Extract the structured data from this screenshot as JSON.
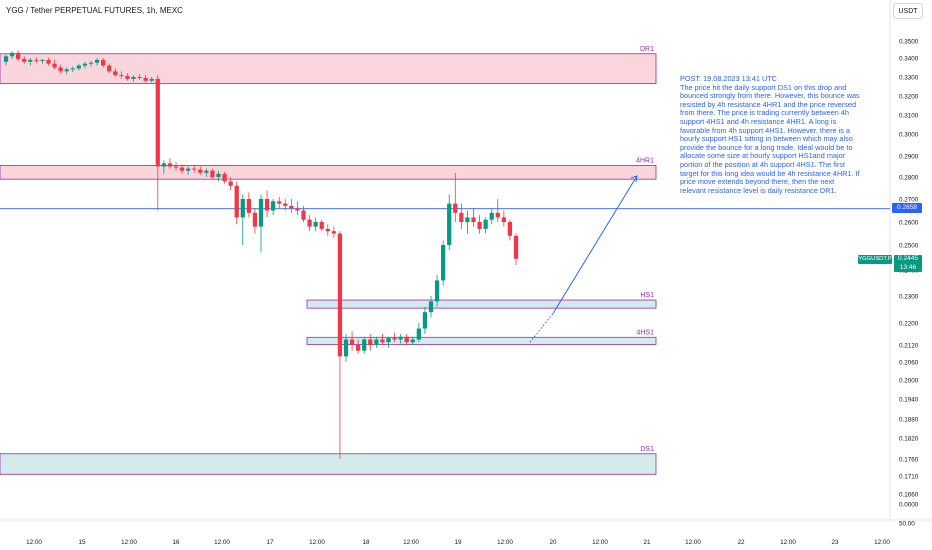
{
  "header": {
    "title": "YGG / Tether PERPETUAL FUTURES, 1h, MEXC",
    "currency": "USDT"
  },
  "annotation": {
    "lines": [
      "POST: 19.08.2023 13:41 UTC",
      "The price hit the daily support DS1 on this drop and bounced strongly from there. However, this bounce was resisted by 4h resistance 4HR1 and the price reversed from there. The price is trading currently between 4h support 4HS1 and 4h resistance 4HR1. A long is favorable from 4h support 4HS1. However, there is a hourly support HS1 sitting in between which may also provide the bounce for a long trade. Ideal would be to allocate some size at hourly support HS1and major portion of the position at 4h support 4HS1. The first target for this long idea would be 4h resistance 4HR1. If price move extends beyond there, then the next relevant resistance level is daily resistance DR1."
    ]
  },
  "price_labels": {
    "horizontal_line": "0.2658",
    "symbol": "YGGUSDT.P",
    "last_price": "0.2445",
    "countdown": "13:46"
  },
  "colors": {
    "up": "#089981",
    "down": "#f23645",
    "resistance_fill": "#fbd5dc",
    "support_fill": "#d3ebea",
    "zone_border": "#9c27b0",
    "line": "#2962ff",
    "axis_text": "#131722"
  },
  "chart_data": {
    "type": "candlestick",
    "title": "YGG / Tether PERPETUAL FUTURES, 1h, MEXC",
    "y_ticks": [
      "0.3500",
      "0.3400",
      "0.3300",
      "0.3200",
      "0.3100",
      "0.3000",
      "0.2900",
      "0.2800",
      "0.2700",
      "0.2600",
      "0.2500",
      "0.2400",
      "0.2300",
      "0.2200",
      "0.2120",
      "0.2060",
      "0.2000",
      "0.1940",
      "0.1880",
      "0.1820",
      "0.1760",
      "0.1710",
      "0.1660",
      "0.0000",
      "50.00"
    ],
    "x_ticks": [
      "12:00",
      "15",
      "12:00",
      "16",
      "12:00",
      "17",
      "12:00",
      "18",
      "12:00",
      "19",
      "12:00",
      "20",
      "12:00",
      "21",
      "12:00",
      "22",
      "12:00",
      "23",
      "12:00"
    ],
    "zones": [
      {
        "label": "DR1",
        "kind": "resistance",
        "top": 0.3425,
        "bottom": 0.3265
      },
      {
        "label": "4HR1",
        "kind": "resistance",
        "top": 0.2855,
        "bottom": 0.279
      },
      {
        "label": "HS1",
        "kind": "support",
        "top": 0.2285,
        "bottom": 0.2255
      },
      {
        "label": "4HS1",
        "kind": "support",
        "top": 0.2148,
        "bottom": 0.2122
      },
      {
        "label": "DS1",
        "kind": "support",
        "top": 0.1775,
        "bottom": 0.1715
      }
    ],
    "horizontal_line": 0.2658,
    "last_price": 0.2445,
    "projection": {
      "from": 0.213,
      "via": 0.2235,
      "to": 0.2805
    },
    "candles": [
      [
        0.338,
        0.342,
        0.336,
        0.341
      ],
      [
        0.341,
        0.344,
        0.3395,
        0.343
      ],
      [
        0.343,
        0.3445,
        0.3385,
        0.3395
      ],
      [
        0.3395,
        0.341,
        0.337,
        0.338
      ],
      [
        0.338,
        0.34,
        0.336,
        0.339
      ],
      [
        0.339,
        0.3405,
        0.3375,
        0.3385
      ],
      [
        0.3385,
        0.3395,
        0.337,
        0.339
      ],
      [
        0.339,
        0.34,
        0.336,
        0.337
      ],
      [
        0.337,
        0.339,
        0.334,
        0.335
      ],
      [
        0.335,
        0.3365,
        0.332,
        0.333
      ],
      [
        0.333,
        0.335,
        0.3315,
        0.334
      ],
      [
        0.334,
        0.3355,
        0.3325,
        0.3345
      ],
      [
        0.3345,
        0.337,
        0.3335,
        0.336
      ],
      [
        0.336,
        0.338,
        0.3345,
        0.337
      ],
      [
        0.337,
        0.3385,
        0.3355,
        0.3375
      ],
      [
        0.3375,
        0.34,
        0.336,
        0.339
      ],
      [
        0.339,
        0.34,
        0.335,
        0.336
      ],
      [
        0.336,
        0.337,
        0.332,
        0.333
      ],
      [
        0.333,
        0.3345,
        0.33,
        0.331
      ],
      [
        0.331,
        0.333,
        0.329,
        0.3305
      ],
      [
        0.3305,
        0.332,
        0.328,
        0.329
      ],
      [
        0.329,
        0.331,
        0.3275,
        0.33
      ],
      [
        0.33,
        0.3315,
        0.3285,
        0.3295
      ],
      [
        0.3295,
        0.331,
        0.327,
        0.328
      ],
      [
        0.328,
        0.33,
        0.327,
        0.329
      ],
      [
        0.329,
        0.331,
        0.265,
        0.285
      ],
      [
        0.285,
        0.288,
        0.2815,
        0.2865
      ],
      [
        0.2865,
        0.289,
        0.284,
        0.285
      ],
      [
        0.285,
        0.287,
        0.283,
        0.2845
      ],
      [
        0.2845,
        0.286,
        0.2815,
        0.283
      ],
      [
        0.283,
        0.285,
        0.281,
        0.284
      ],
      [
        0.284,
        0.2855,
        0.282,
        0.2835
      ],
      [
        0.2835,
        0.285,
        0.281,
        0.282
      ],
      [
        0.282,
        0.284,
        0.28,
        0.283
      ],
      [
        0.283,
        0.284,
        0.279,
        0.28
      ],
      [
        0.28,
        0.283,
        0.278,
        0.2815
      ],
      [
        0.2815,
        0.2825,
        0.277,
        0.278
      ],
      [
        0.278,
        0.28,
        0.274,
        0.276
      ],
      [
        0.276,
        0.278,
        0.259,
        0.262
      ],
      [
        0.262,
        0.272,
        0.25,
        0.27
      ],
      [
        0.27,
        0.273,
        0.262,
        0.264
      ],
      [
        0.264,
        0.266,
        0.255,
        0.258
      ],
      [
        0.258,
        0.272,
        0.247,
        0.27
      ],
      [
        0.27,
        0.274,
        0.262,
        0.265
      ],
      [
        0.265,
        0.27,
        0.263,
        0.269
      ],
      [
        0.269,
        0.271,
        0.266,
        0.268
      ],
      [
        0.268,
        0.27,
        0.265,
        0.267
      ],
      [
        0.267,
        0.27,
        0.264,
        0.266
      ],
      [
        0.266,
        0.269,
        0.263,
        0.265
      ],
      [
        0.265,
        0.267,
        0.26,
        0.261
      ],
      [
        0.261,
        0.263,
        0.256,
        0.258
      ],
      [
        0.258,
        0.262,
        0.256,
        0.26
      ],
      [
        0.26,
        0.261,
        0.256,
        0.257
      ],
      [
        0.257,
        0.259,
        0.254,
        0.256
      ],
      [
        0.256,
        0.258,
        0.253,
        0.255
      ],
      [
        0.255,
        0.256,
        0.176,
        0.208
      ],
      [
        0.208,
        0.216,
        0.206,
        0.214
      ],
      [
        0.214,
        0.217,
        0.21,
        0.212
      ],
      [
        0.212,
        0.214,
        0.209,
        0.21
      ],
      [
        0.21,
        0.215,
        0.209,
        0.214
      ],
      [
        0.214,
        0.216,
        0.21,
        0.212
      ],
      [
        0.212,
        0.215,
        0.211,
        0.214
      ],
      [
        0.214,
        0.216,
        0.212,
        0.213
      ],
      [
        0.213,
        0.215,
        0.211,
        0.2145
      ],
      [
        0.2145,
        0.2165,
        0.213,
        0.214
      ],
      [
        0.214,
        0.216,
        0.2125,
        0.215
      ],
      [
        0.215,
        0.216,
        0.212,
        0.213
      ],
      [
        0.213,
        0.215,
        0.212,
        0.214
      ],
      [
        0.214,
        0.22,
        0.213,
        0.218
      ],
      [
        0.218,
        0.226,
        0.216,
        0.224
      ],
      [
        0.224,
        0.23,
        0.222,
        0.228
      ],
      [
        0.228,
        0.238,
        0.226,
        0.236
      ],
      [
        0.236,
        0.252,
        0.234,
        0.25
      ],
      [
        0.25,
        0.272,
        0.248,
        0.268
      ],
      [
        0.268,
        0.282,
        0.26,
        0.264
      ],
      [
        0.264,
        0.268,
        0.257,
        0.26
      ],
      [
        0.26,
        0.265,
        0.255,
        0.262
      ],
      [
        0.262,
        0.266,
        0.258,
        0.26
      ],
      [
        0.26,
        0.263,
        0.255,
        0.257
      ],
      [
        0.257,
        0.262,
        0.255,
        0.261
      ],
      [
        0.261,
        0.266,
        0.259,
        0.264
      ],
      [
        0.264,
        0.27,
        0.26,
        0.262
      ],
      [
        0.262,
        0.265,
        0.258,
        0.26
      ],
      [
        0.26,
        0.261,
        0.252,
        0.254
      ],
      [
        0.254,
        0.255,
        0.242,
        0.2445
      ]
    ]
  }
}
